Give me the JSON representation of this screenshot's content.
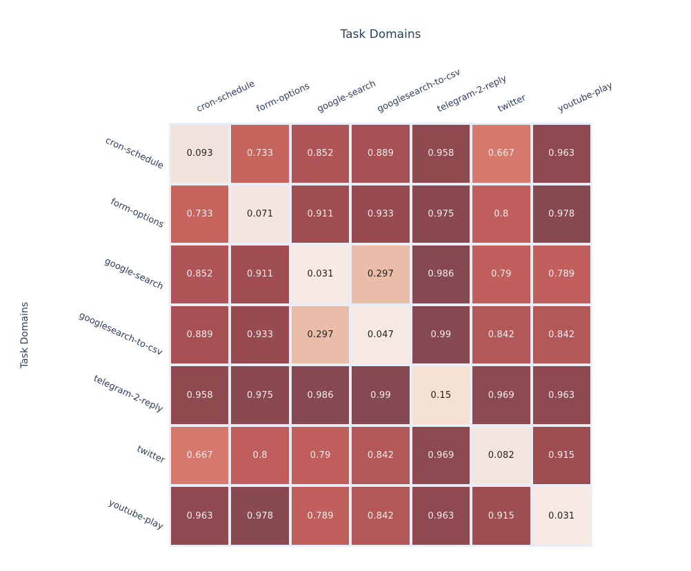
{
  "header": {
    "title": "Task Domains"
  },
  "y_axis": {
    "title": "Task Domains"
  },
  "chart_data": {
    "type": "heatmap",
    "title": "Task Domains",
    "xlabel": "Task Domains",
    "ylabel": "Task Domains",
    "legend": "none",
    "grid": "off",
    "value_range": [
      0,
      1
    ],
    "categories": [
      "cron-schedule",
      "form-options",
      "google-search",
      "googlesearch-to-csv",
      "telegram-2-reply",
      "twitter",
      "youtube-play"
    ],
    "rows": [
      [
        0.093,
        0.733,
        0.852,
        0.889,
        0.958,
        0.667,
        0.963
      ],
      [
        0.733,
        0.071,
        0.911,
        0.933,
        0.975,
        0.8,
        0.978
      ],
      [
        0.852,
        0.911,
        0.031,
        0.297,
        0.986,
        0.79,
        0.789
      ],
      [
        0.889,
        0.933,
        0.297,
        0.047,
        0.99,
        0.842,
        0.842
      ],
      [
        0.958,
        0.975,
        0.986,
        0.99,
        0.15,
        0.969,
        0.963
      ],
      [
        0.667,
        0.8,
        0.79,
        0.842,
        0.969,
        0.082,
        0.915
      ],
      [
        0.963,
        0.978,
        0.789,
        0.842,
        0.963,
        0.915,
        0.031
      ]
    ]
  },
  "colors": {
    "page_bg": "#ffffff",
    "plot_bg": "#e9edf7",
    "label_color": "#2a3f5f",
    "cell_text_dark": "#1f1f1f",
    "cell_text_light": "#f3eeed",
    "scale_stops": [
      [
        0.0,
        "#f9ede8"
      ],
      [
        0.1,
        "#f2e3dc"
      ],
      [
        0.16,
        "#f5e0d0"
      ],
      [
        0.3,
        "#e9bca7"
      ],
      [
        0.5,
        "#e19a84"
      ],
      [
        0.667,
        "#d5796d"
      ],
      [
        0.74,
        "#c4625c"
      ],
      [
        0.8,
        "#bf5e5c"
      ],
      [
        0.86,
        "#ae5456"
      ],
      [
        0.91,
        "#a04d51"
      ],
      [
        0.945,
        "#934a50"
      ],
      [
        1.0,
        "#834951"
      ]
    ]
  }
}
